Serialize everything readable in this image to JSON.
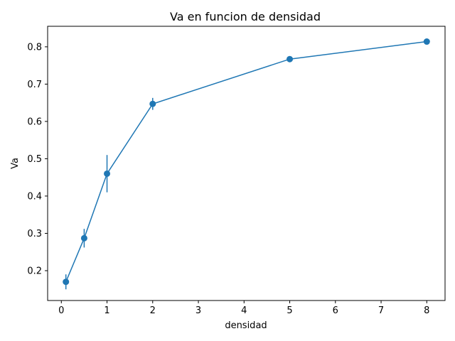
{
  "chart_data": {
    "type": "line",
    "title": "Va en funcion de densidad",
    "xlabel": "densidad",
    "ylabel": "Va",
    "xlim": [
      -0.3,
      8.4
    ],
    "ylim": [
      0.12,
      0.855
    ],
    "xticks": [
      0,
      1,
      2,
      3,
      4,
      5,
      6,
      7,
      8
    ],
    "yticks": [
      0.2,
      0.3,
      0.4,
      0.5,
      0.6,
      0.7,
      0.8
    ],
    "xtick_labels": [
      "0",
      "1",
      "2",
      "3",
      "4",
      "5",
      "6",
      "7",
      "8"
    ],
    "ytick_labels": [
      "0.2",
      "0.3",
      "0.4",
      "0.5",
      "0.6",
      "0.7",
      "0.8"
    ],
    "grid": false,
    "color": "#1f77b4",
    "series": [
      {
        "x": [
          0.1,
          0.5,
          1,
          2,
          5,
          8
        ],
        "y": [
          0.17,
          0.287,
          0.46,
          0.647,
          0.767,
          0.814
        ],
        "yerr": [
          0.02,
          0.025,
          0.05,
          0.016,
          0.004,
          0.003
        ]
      }
    ]
  }
}
